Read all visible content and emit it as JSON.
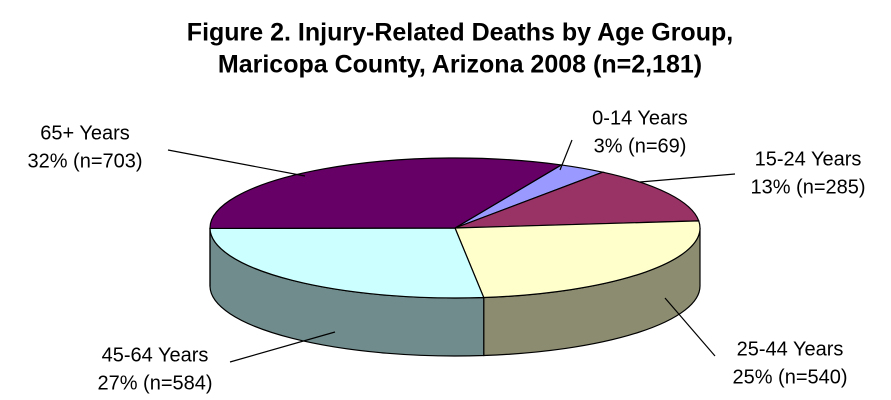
{
  "chart_data": {
    "type": "pie",
    "title": [
      "Figure 2. Injury-Related Deaths by Age Group,",
      "Maricopa County, Arizona 2008 (n=2,181)"
    ],
    "categories": [
      "0-14 Years",
      "15-24 Years",
      "25-44 Years",
      "45-64 Years",
      "65+ Years"
    ],
    "values": [
      69,
      285,
      540,
      584,
      703
    ],
    "value_labels": [
      "3% (n=69)",
      "13% (n=285)",
      "25% (n=540)",
      "27% (n=584)",
      "32% (n=703)"
    ],
    "colors": [
      "#9999ff",
      "#993366",
      "#ffffcc",
      "#ccffff",
      "#660066"
    ]
  }
}
